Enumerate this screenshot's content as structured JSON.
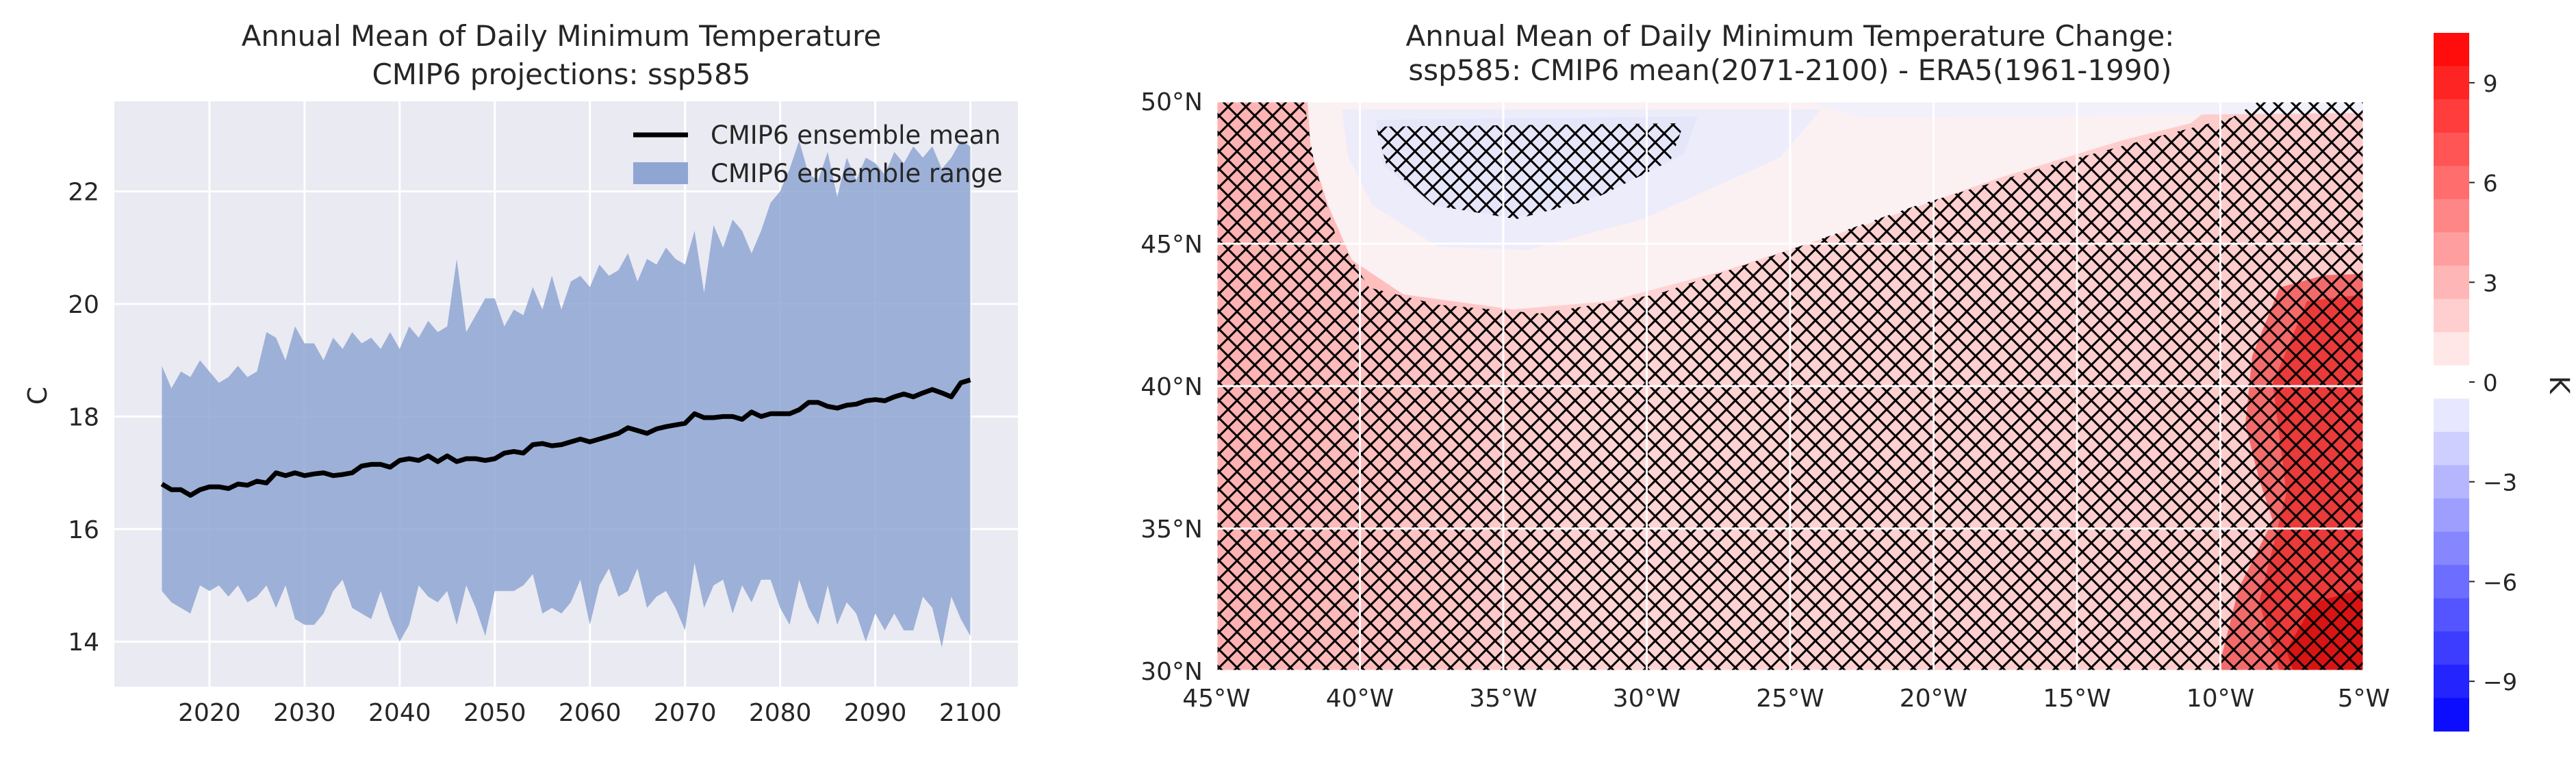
{
  "chart_data": [
    {
      "type": "area",
      "title": "Annual Mean of Daily Minimum Temperature",
      "subtitle": "CMIP6 projections: ssp585",
      "xlabel": "",
      "ylabel": "C",
      "xlim": [
        2010,
        2105
      ],
      "ylim": [
        13.2,
        23.6
      ],
      "x_ticks": [
        2020,
        2030,
        2040,
        2050,
        2060,
        2070,
        2080,
        2090,
        2100
      ],
      "y_ticks": [
        14,
        16,
        18,
        20,
        22
      ],
      "grid": true,
      "legend_position": "top-right",
      "x": [
        2015,
        2016,
        2017,
        2018,
        2019,
        2020,
        2021,
        2022,
        2023,
        2024,
        2025,
        2026,
        2027,
        2028,
        2029,
        2030,
        2031,
        2032,
        2033,
        2034,
        2035,
        2036,
        2037,
        2038,
        2039,
        2040,
        2041,
        2042,
        2043,
        2044,
        2045,
        2046,
        2047,
        2048,
        2049,
        2050,
        2051,
        2052,
        2053,
        2054,
        2055,
        2056,
        2057,
        2058,
        2059,
        2060,
        2061,
        2062,
        2063,
        2064,
        2065,
        2066,
        2067,
        2068,
        2069,
        2070,
        2071,
        2072,
        2073,
        2074,
        2075,
        2076,
        2077,
        2078,
        2079,
        2080,
        2081,
        2082,
        2083,
        2084,
        2085,
        2086,
        2087,
        2088,
        2089,
        2090,
        2091,
        2092,
        2093,
        2094,
        2095,
        2096,
        2097,
        2098,
        2099,
        2100
      ],
      "series": [
        {
          "name": "CMIP6 ensemble mean",
          "color": "#000000",
          "values": [
            16.8,
            16.7,
            16.7,
            16.6,
            16.7,
            16.75,
            16.75,
            16.72,
            16.8,
            16.78,
            16.85,
            16.82,
            17.0,
            16.95,
            17.0,
            16.95,
            16.98,
            17.0,
            16.95,
            16.97,
            17.0,
            17.12,
            17.15,
            17.15,
            17.1,
            17.22,
            17.25,
            17.22,
            17.3,
            17.2,
            17.3,
            17.2,
            17.25,
            17.25,
            17.22,
            17.25,
            17.35,
            17.38,
            17.35,
            17.5,
            17.52,
            17.48,
            17.5,
            17.55,
            17.6,
            17.55,
            17.6,
            17.65,
            17.7,
            17.8,
            17.75,
            17.7,
            17.78,
            17.82,
            17.85,
            17.88,
            18.05,
            17.98,
            17.98,
            18.0,
            18.0,
            17.95,
            18.08,
            18.0,
            18.05,
            18.05,
            18.05,
            18.12,
            18.25,
            18.25,
            18.18,
            18.15,
            18.2,
            18.22,
            18.28,
            18.3,
            18.28,
            18.35,
            18.4,
            18.35,
            18.42,
            18.48,
            18.42,
            18.35,
            18.6,
            18.65
          ]
        },
        {
          "name": "CMIP6 ensemble range",
          "color": "#8fa6d2",
          "upper": [
            18.9,
            18.5,
            18.8,
            18.7,
            19.0,
            18.8,
            18.6,
            18.7,
            18.9,
            18.7,
            18.8,
            19.5,
            19.4,
            19.0,
            19.6,
            19.3,
            19.3,
            19.0,
            19.4,
            19.2,
            19.5,
            19.3,
            19.4,
            19.2,
            19.5,
            19.2,
            19.6,
            19.4,
            19.7,
            19.5,
            19.6,
            20.8,
            19.5,
            19.8,
            20.1,
            20.1,
            19.6,
            19.9,
            19.8,
            20.3,
            19.9,
            20.5,
            19.9,
            20.4,
            20.5,
            20.3,
            20.7,
            20.5,
            20.6,
            20.9,
            20.4,
            20.8,
            20.7,
            21.0,
            20.8,
            20.7,
            21.3,
            20.2,
            21.4,
            21.0,
            21.5,
            21.3,
            20.9,
            21.3,
            21.8,
            22.0,
            22.4,
            22.9,
            22.3,
            22.2,
            22.7,
            21.9,
            22.6,
            22.2,
            22.6,
            22.5,
            22.3,
            22.7,
            22.5,
            22.8,
            22.6,
            22.8,
            22.4,
            22.6,
            22.9,
            22.8
          ],
          "lower": [
            14.9,
            14.7,
            14.6,
            14.5,
            15.0,
            14.9,
            15.0,
            14.8,
            15.0,
            14.7,
            14.8,
            15.0,
            14.6,
            15.0,
            14.4,
            14.3,
            14.3,
            14.5,
            14.9,
            15.1,
            14.6,
            14.5,
            14.4,
            14.9,
            14.4,
            14.0,
            14.3,
            15.0,
            14.8,
            14.7,
            14.9,
            14.3,
            15.0,
            14.6,
            14.1,
            14.9,
            14.9,
            14.9,
            15.0,
            15.2,
            14.5,
            14.6,
            14.5,
            14.7,
            15.1,
            14.3,
            15.0,
            15.3,
            14.8,
            14.9,
            15.3,
            14.6,
            14.8,
            14.9,
            14.6,
            14.2,
            15.4,
            14.6,
            15.0,
            15.1,
            14.5,
            15.0,
            14.7,
            15.1,
            15.1,
            14.6,
            14.3,
            15.1,
            14.6,
            14.3,
            15.0,
            14.3,
            14.7,
            14.5,
            14.0,
            14.5,
            14.2,
            14.5,
            14.2,
            14.2,
            14.8,
            14.6,
            13.9,
            14.8,
            14.4,
            14.1
          ]
        }
      ]
    },
    {
      "type": "heatmap",
      "title": "Annual Mean of Daily Minimum Temperature Change:",
      "subtitle": "ssp585: CMIP6 mean(2071-2100) - ERA5(1961-1990)",
      "x_ticks": [
        "45°W",
        "40°W",
        "35°W",
        "30°W",
        "25°W",
        "20°W",
        "15°W",
        "10°W",
        "5°W"
      ],
      "x_tick_values": [
        -45,
        -40,
        -35,
        -30,
        -25,
        -20,
        -15,
        -10,
        -5
      ],
      "y_ticks": [
        "50°N",
        "45°N",
        "40°N",
        "35°N",
        "30°N"
      ],
      "y_tick_values": [
        50,
        45,
        40,
        35,
        30
      ],
      "xlim": [
        -45,
        -5
      ],
      "ylim": [
        30,
        50
      ],
      "colorbar": {
        "label": "K",
        "ticks": [
          9,
          6,
          3,
          0,
          -3,
          -6,
          -9
        ],
        "vmin": -10.5,
        "vmax": 10.5,
        "cmap": "bwr"
      },
      "hatching": "cross-hatch marks regions of model agreement",
      "field_summary": "mostly +1 to +2 K warming over ocean; strong +6 to +9 K warming near the eastern coast (10°W–5°W, 30°N–44°N); slight cooling near 46–49°N, 30°W–35°W"
    }
  ]
}
